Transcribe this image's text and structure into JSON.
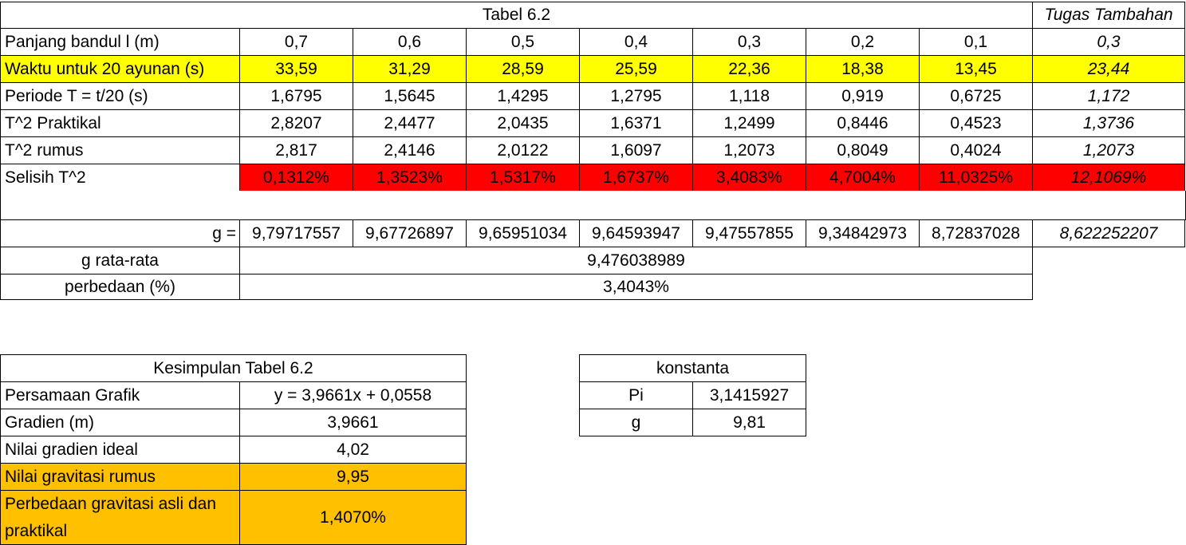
{
  "tabel": {
    "title": "Tabel 6.2",
    "extra_title": "Tugas Tambahan",
    "rows": [
      {
        "label": "Panjang bandul l (m)",
        "values": [
          "0,7",
          "0,6",
          "0,5",
          "0,4",
          "0,3",
          "0,2",
          "0,1"
        ],
        "extra": "0,3"
      },
      {
        "label": "Waktu untuk 20 ayunan (s)",
        "values": [
          "33,59",
          "31,29",
          "28,59",
          "25,59",
          "22,36",
          "18,38",
          "13,45"
        ],
        "extra": "23,44"
      },
      {
        "label": "Periode T = t/20 (s)",
        "values": [
          "1,6795",
          "1,5645",
          "1,4295",
          "1,2795",
          "1,118",
          "0,919",
          "0,6725"
        ],
        "extra": "1,172"
      },
      {
        "label": "T^2 Praktikal",
        "values": [
          "2,8207",
          "2,4477",
          "2,0435",
          "1,6371",
          "1,2499",
          "0,8446",
          "0,4523"
        ],
        "extra": "1,3736"
      },
      {
        "label": "T^2 rumus",
        "values": [
          "2,817",
          "2,4146",
          "2,0122",
          "1,6097",
          "1,2073",
          "0,8049",
          "0,4024"
        ],
        "extra": "1,2073"
      },
      {
        "label": "Selisih T^2",
        "values": [
          "0,1312%",
          "1,3523%",
          "1,5317%",
          "1,6737%",
          "3,4083%",
          "4,7004%",
          "11,0325%"
        ],
        "extra": "12,1069%"
      }
    ],
    "colors": {
      "yellow": "#ffff00",
      "red": "#ff0000",
      "orange": "#ffc000"
    }
  },
  "g_section": {
    "label": "g =",
    "values": [
      "9,79717557",
      "9,67726897",
      "9,65951034",
      "9,64593947",
      "9,47557855",
      "9,34842973",
      "8,72837028"
    ],
    "extra": "8,622252207",
    "avg_label": "g rata-rata",
    "avg_value": "9,476038989",
    "diff_label": "perbedaan (%)",
    "diff_value": "3,4043%"
  },
  "kesimpulan": {
    "title": "Kesimpulan Tabel 6.2",
    "rows": [
      {
        "label": "Persamaan Grafik",
        "value": "y = 3,9661x + 0,0558"
      },
      {
        "label": "Gradien (m)",
        "value": "3,9661"
      },
      {
        "label": "Nilai gradien ideal",
        "value": "4,02"
      },
      {
        "label": "Nilai gravitasi rumus",
        "value": "9,95"
      },
      {
        "label": "Perbedaan gravitasi asli dan praktikal",
        "value": "1,4070%"
      }
    ]
  },
  "konstanta": {
    "title": "konstanta",
    "rows": [
      {
        "label": "Pi",
        "value": "3,1415927"
      },
      {
        "label": "g",
        "value": "9,81"
      }
    ]
  }
}
